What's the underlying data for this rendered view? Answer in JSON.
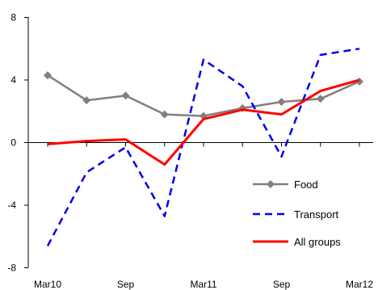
{
  "chart_data": {
    "type": "line",
    "title": "",
    "xlabel": "",
    "ylabel": "",
    "ylim": [
      -8,
      8
    ],
    "yticks": [
      -8,
      -4,
      0,
      4,
      8
    ],
    "xticks": [
      "Mar10",
      "Sep",
      "Mar11",
      "Sep",
      "Mar12"
    ],
    "x": [
      "Mar10",
      "Jun10",
      "Sep10",
      "Dec10",
      "Mar11",
      "Jun11",
      "Sep11",
      "Dec11",
      "Mar12"
    ],
    "grid": false,
    "legend_position": "bottom-right",
    "series": [
      {
        "name": "Food",
        "color": "#808080",
        "style": "solid-diamond",
        "values": [
          4.3,
          2.7,
          3.0,
          1.8,
          1.7,
          2.2,
          2.6,
          2.8,
          3.9
        ]
      },
      {
        "name": "Transport",
        "color": "#0000ee",
        "style": "dashed",
        "values": [
          -6.6,
          -1.9,
          -0.3,
          -4.7,
          5.3,
          3.6,
          -0.9,
          5.6,
          6.0
        ]
      },
      {
        "name": "All groups",
        "color": "#ff0000",
        "style": "solid",
        "values": [
          -0.1,
          0.1,
          0.2,
          -1.4,
          1.5,
          2.1,
          1.8,
          3.3,
          4.0
        ]
      }
    ]
  }
}
